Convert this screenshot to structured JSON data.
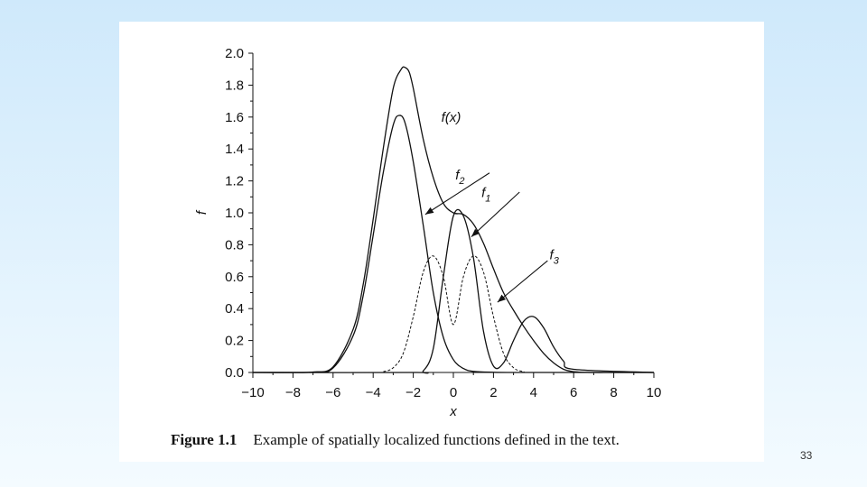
{
  "caption": {
    "figure_number": "Figure 1.1",
    "text": "Example of spatially localized functions defined in the text."
  },
  "slide_number": "33",
  "chart_data": {
    "type": "line",
    "xlabel": "x",
    "ylabel": "f",
    "xlim": [
      -10,
      10
    ],
    "ylim": [
      0,
      2.0
    ],
    "x_ticks": [
      -10,
      -8,
      -6,
      -4,
      -2,
      0,
      2,
      4,
      6,
      8,
      10
    ],
    "y_ticks": [
      0.0,
      0.2,
      0.4,
      0.6,
      0.8,
      1.0,
      1.2,
      1.4,
      1.6,
      1.8,
      2.0
    ],
    "x_tick_labels": [
      "−10",
      "−8",
      "−6",
      "−4",
      "−2",
      "0",
      "2",
      "4",
      "6",
      "8",
      "10"
    ],
    "y_tick_labels": [
      "0.0",
      "0.2",
      "0.4",
      "0.6",
      "0.8",
      "1.0",
      "1.2",
      "1.4",
      "1.6",
      "1.8",
      "2.0"
    ],
    "grid": false,
    "series": [
      {
        "name": "f(x)",
        "style": "solid",
        "x": [
          -10,
          -8,
          -7,
          -6,
          -5,
          -4.5,
          -4,
          -3.5,
          -3,
          -2.6,
          -2.4,
          -2.2,
          -2,
          -1.5,
          -1,
          -0.5,
          0,
          0.5,
          1,
          1.5,
          2,
          2.5,
          3,
          3.5,
          4,
          4.5,
          5,
          5.5,
          6,
          7,
          8,
          10
        ],
        "y": [
          0,
          0,
          0.003,
          0.035,
          0.27,
          0.55,
          0.96,
          1.4,
          1.78,
          1.9,
          1.91,
          1.88,
          1.78,
          1.46,
          1.22,
          1.06,
          1.0,
          0.99,
          0.93,
          0.81,
          0.65,
          0.5,
          0.39,
          0.29,
          0.2,
          0.12,
          0.06,
          0.02,
          0.005,
          0,
          0,
          0
        ]
      },
      {
        "name": "f2",
        "style": "solid",
        "x": [
          -10,
          -7,
          -6,
          -5,
          -4.5,
          -4,
          -3.5,
          -3,
          -2.7,
          -2.4,
          -2,
          -1.5,
          -1,
          -0.5,
          0,
          0.5,
          1,
          2,
          3,
          4,
          6,
          10
        ],
        "y": [
          0,
          0.002,
          0.028,
          0.23,
          0.48,
          0.86,
          1.25,
          1.55,
          1.61,
          1.56,
          1.32,
          0.92,
          0.5,
          0.22,
          0.08,
          0.025,
          0.007,
          0.001,
          0,
          0,
          0,
          0
        ]
      },
      {
        "name": "f1",
        "style": "solid",
        "x": [
          -10,
          -2,
          -1.5,
          -1,
          -0.5,
          0,
          0.5,
          1,
          1.5,
          2,
          2.5,
          3,
          3.5,
          4,
          4.5,
          5,
          5.5,
          6,
          10
        ],
        "y": [
          0,
          0,
          0.01,
          0.15,
          0.6,
          0.98,
          0.98,
          0.72,
          0.26,
          0.04,
          0.06,
          0.2,
          0.32,
          0.35,
          0.28,
          0.16,
          0.07,
          0.02,
          0
        ]
      },
      {
        "name": "f3",
        "style": "dashed",
        "x": [
          -10,
          -4,
          -3.5,
          -3,
          -2.5,
          -2,
          -1.5,
          -1,
          -0.5,
          0,
          0.5,
          1,
          1.5,
          2,
          2.5,
          3,
          3.5,
          4,
          10
        ],
        "y": [
          0,
          0,
          0.005,
          0.03,
          0.12,
          0.35,
          0.63,
          0.73,
          0.6,
          0.3,
          0.6,
          0.73,
          0.63,
          0.35,
          0.12,
          0.03,
          0.005,
          0,
          0
        ]
      }
    ],
    "annotations": [
      {
        "label": "f(x)",
        "at_x": -0.6,
        "at_y": 1.57,
        "arrow": false
      },
      {
        "label": "f2",
        "at_x": 0.1,
        "at_y": 1.21,
        "arrow_from": [
          1.8,
          1.25
        ],
        "arrow_to": [
          -1.4,
          0.99
        ]
      },
      {
        "label": "f1",
        "at_x": 1.4,
        "at_y": 1.1,
        "arrow_from": [
          3.3,
          1.13
        ],
        "arrow_to": [
          0.9,
          0.85
        ]
      },
      {
        "label": "f3",
        "at_x": 4.8,
        "at_y": 0.71,
        "arrow_from": [
          4.7,
          0.7
        ],
        "arrow_to": [
          2.2,
          0.44
        ]
      }
    ]
  }
}
